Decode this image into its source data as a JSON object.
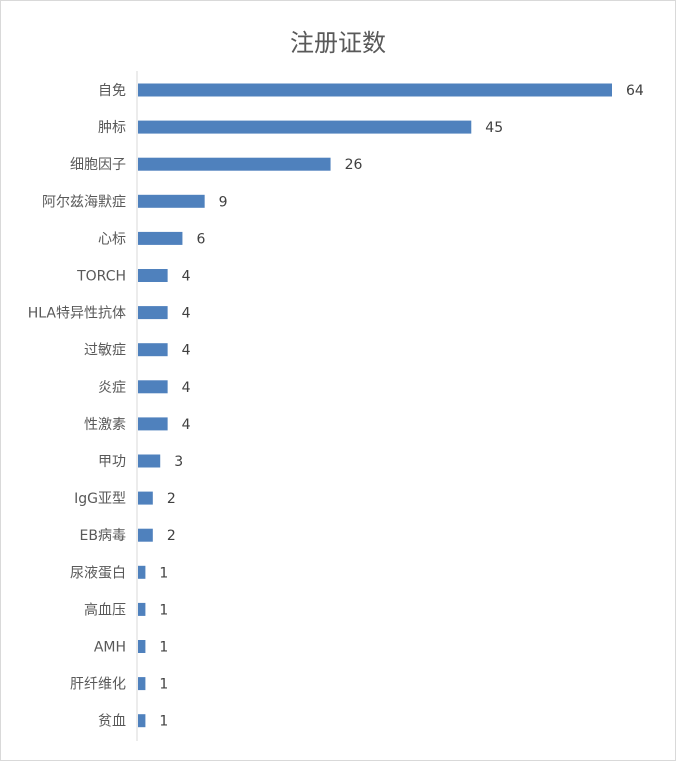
{
  "chart_data": {
    "type": "bar",
    "orientation": "horizontal",
    "title": "注册证数",
    "categories": [
      "自免",
      "肿标",
      "细胞因子",
      "阿尔兹海默症",
      "心标",
      "TORCH",
      "HLA特异性抗体",
      "过敏症",
      "炎症",
      "性激素",
      "甲功",
      "IgG亚型",
      "EB病毒",
      "尿液蛋白",
      "高血压",
      "AMH",
      "肝纤维化",
      "贫血"
    ],
    "values": [
      64,
      45,
      26,
      9,
      6,
      4,
      4,
      4,
      4,
      4,
      3,
      2,
      2,
      1,
      1,
      1,
      1,
      1
    ],
    "xlim": [
      0,
      64
    ],
    "grid": false,
    "legend": "none",
    "data_labels": true,
    "bar_color": "#4f81bd"
  }
}
